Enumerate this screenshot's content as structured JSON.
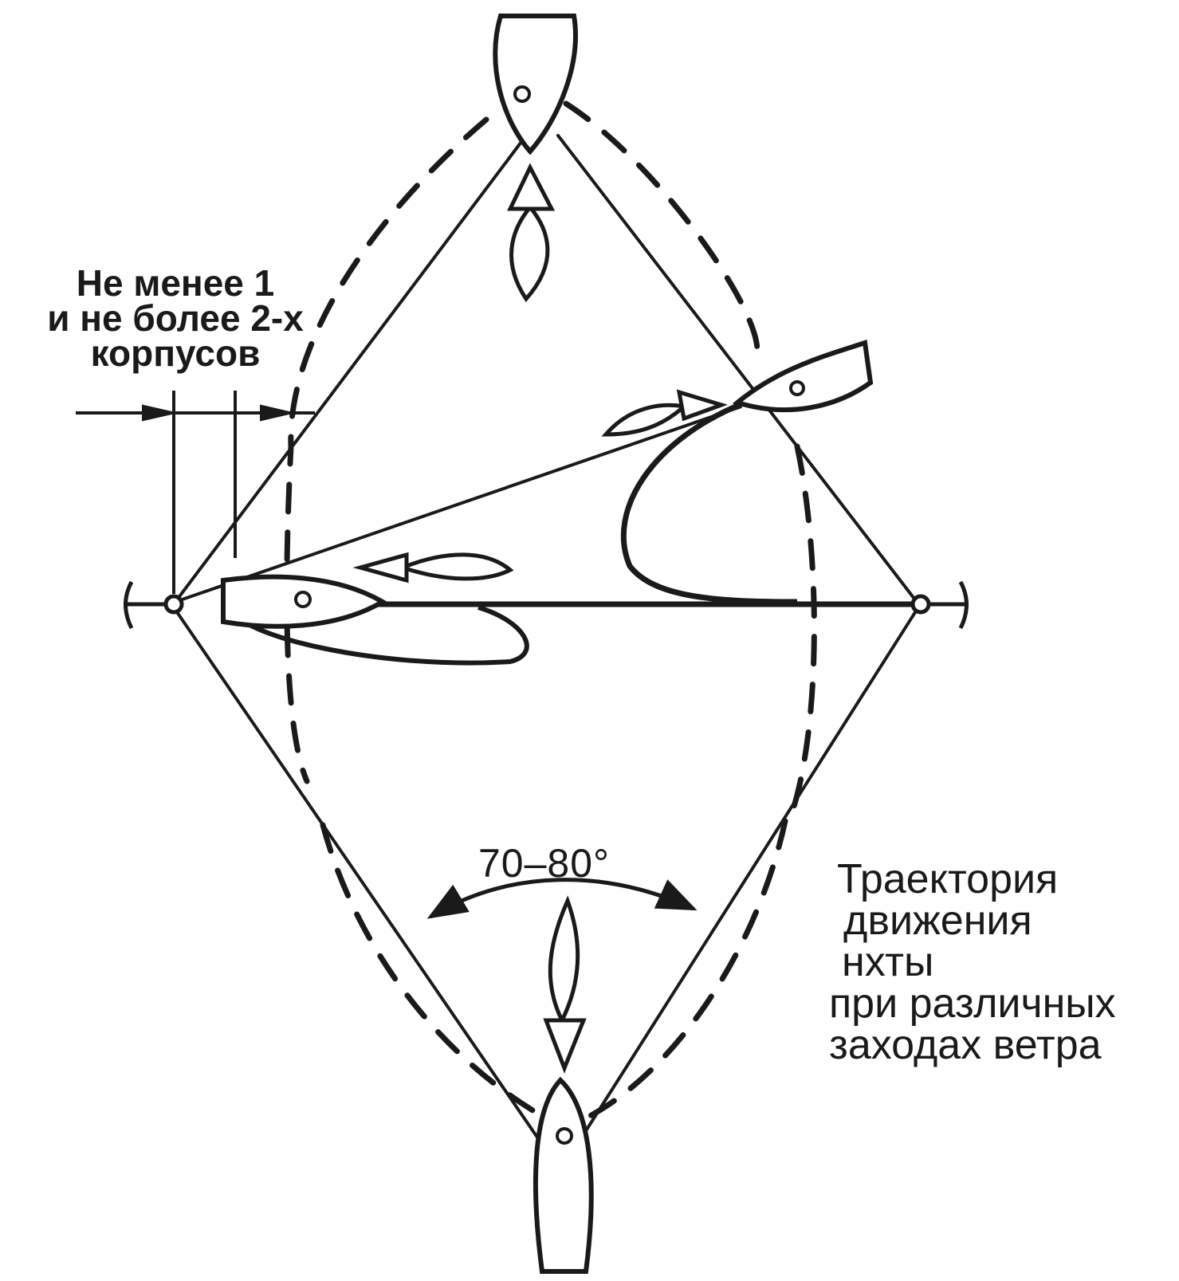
{
  "labels": {
    "spacing": [
      "Не менее 1",
      "и не более 2-х",
      "корпусов"
    ],
    "angle": "70–80°",
    "trajectory": [
      "Траектория",
      "движения",
      "нхты",
      "при различных",
      "заходах ветра"
    ]
  },
  "colors": {
    "ink": "#1a1a1a",
    "background": "#ffffff"
  }
}
